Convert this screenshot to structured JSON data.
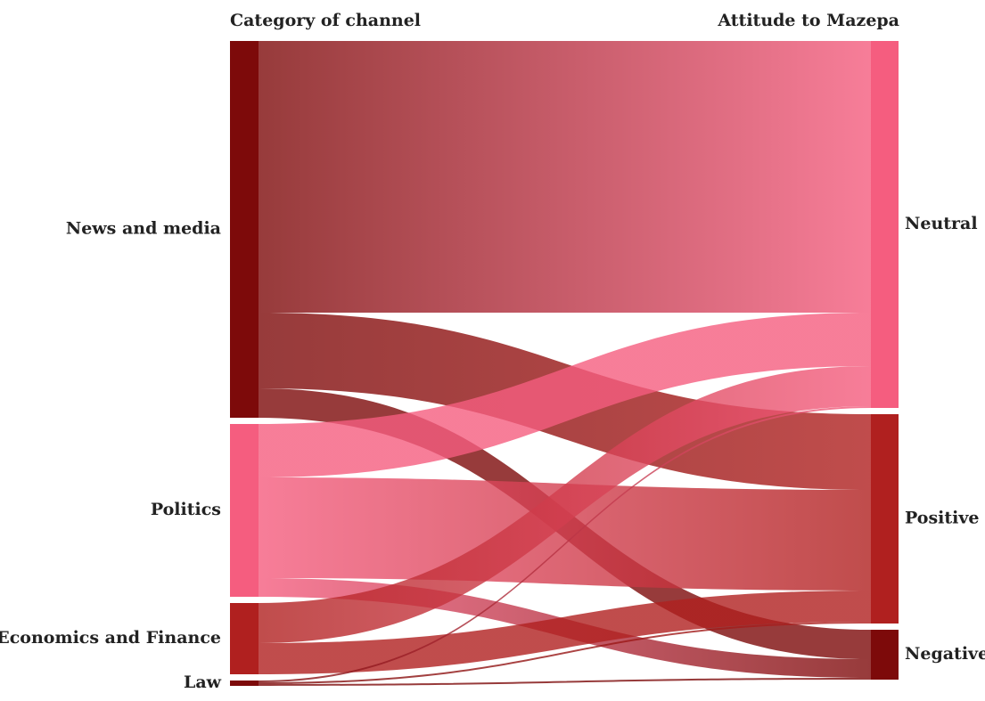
{
  "chart_data": {
    "type": "sankey",
    "left_title": "Category of channel",
    "right_title": "Attitude to Mazepa",
    "sources": [
      {
        "name": "News and media",
        "color": "#7d0a0a"
      },
      {
        "name": "Politics",
        "color": "#f55d7f"
      },
      {
        "name": "Economics and Finance",
        "color": "#b0201f"
      },
      {
        "name": "Law",
        "color": "#7d0a0a"
      }
    ],
    "targets": [
      {
        "name": "Neutral",
        "color": "#f55d7f"
      },
      {
        "name": "Positive",
        "color": "#b0201f"
      },
      {
        "name": "Negative",
        "color": "#7d0a0a"
      }
    ],
    "flows": [
      {
        "source": "News and media",
        "target": "Neutral",
        "value": 305
      },
      {
        "source": "News and media",
        "target": "Positive",
        "value": 85
      },
      {
        "source": "News and media",
        "target": "Negative",
        "value": 33
      },
      {
        "source": "Politics",
        "target": "Neutral",
        "value": 60
      },
      {
        "source": "Politics",
        "target": "Positive",
        "value": 113
      },
      {
        "source": "Politics",
        "target": "Negative",
        "value": 21
      },
      {
        "source": "Economics and Finance",
        "target": "Neutral",
        "value": 45
      },
      {
        "source": "Economics and Finance",
        "target": "Positive",
        "value": 35
      },
      {
        "source": "Law",
        "target": "Neutral",
        "value": 2
      },
      {
        "source": "Law",
        "target": "Positive",
        "value": 2
      },
      {
        "source": "Law",
        "target": "Negative",
        "value": 2
      }
    ]
  }
}
